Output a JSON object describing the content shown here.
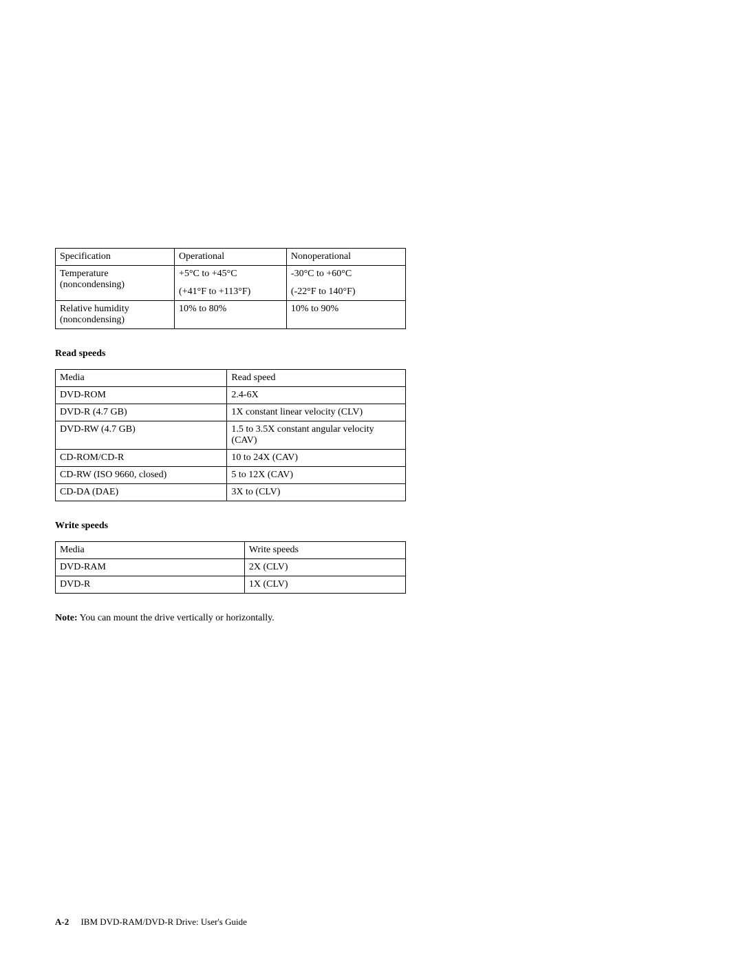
{
  "env_table": {
    "headers": [
      "Specification",
      "Operational",
      "Nonoperational"
    ],
    "rows": [
      {
        "spec": "Temperature (noncondensing)",
        "op_main": "+5°C to +45°C",
        "op_sub": "(+41°F to +113°F)",
        "nonop_main": "-30°C to +60°C",
        "nonop_sub": "(-22°F to 140°F)"
      },
      {
        "spec": "Relative humidity (noncondensing)",
        "op_main": "10% to 80%",
        "op_sub": "",
        "nonop_main": "10% to 90%",
        "nonop_sub": ""
      }
    ]
  },
  "read_section_heading": "Read speeds",
  "read_table": {
    "headers": [
      "Media",
      "Read speed"
    ],
    "rows": [
      [
        "DVD-ROM",
        "2.4-6X"
      ],
      [
        "DVD-R (4.7 GB)",
        "1X constant linear velocity (CLV)"
      ],
      [
        "DVD-RW (4.7 GB)",
        "1.5 to 3.5X constant angular velocity (CAV)"
      ],
      [
        "CD-ROM/CD-R",
        "10 to 24X (CAV)"
      ],
      [
        "CD-RW (ISO 9660, closed)",
        "5 to 12X (CAV)"
      ],
      [
        "CD-DA (DAE)",
        "3X to (CLV)"
      ]
    ]
  },
  "write_section_heading": "Write speeds",
  "write_table": {
    "headers": [
      "Media",
      "Write speeds"
    ],
    "rows": [
      [
        "DVD-RAM",
        "2X (CLV)"
      ],
      [
        "DVD-R",
        "1X (CLV)"
      ]
    ]
  },
  "note_label": "Note:",
  "note_text": "You can mount the drive vertically or horizontally.",
  "footer_page": "A-2",
  "footer_text": "IBM DVD-RAM/DVD-R Drive: User's Guide"
}
